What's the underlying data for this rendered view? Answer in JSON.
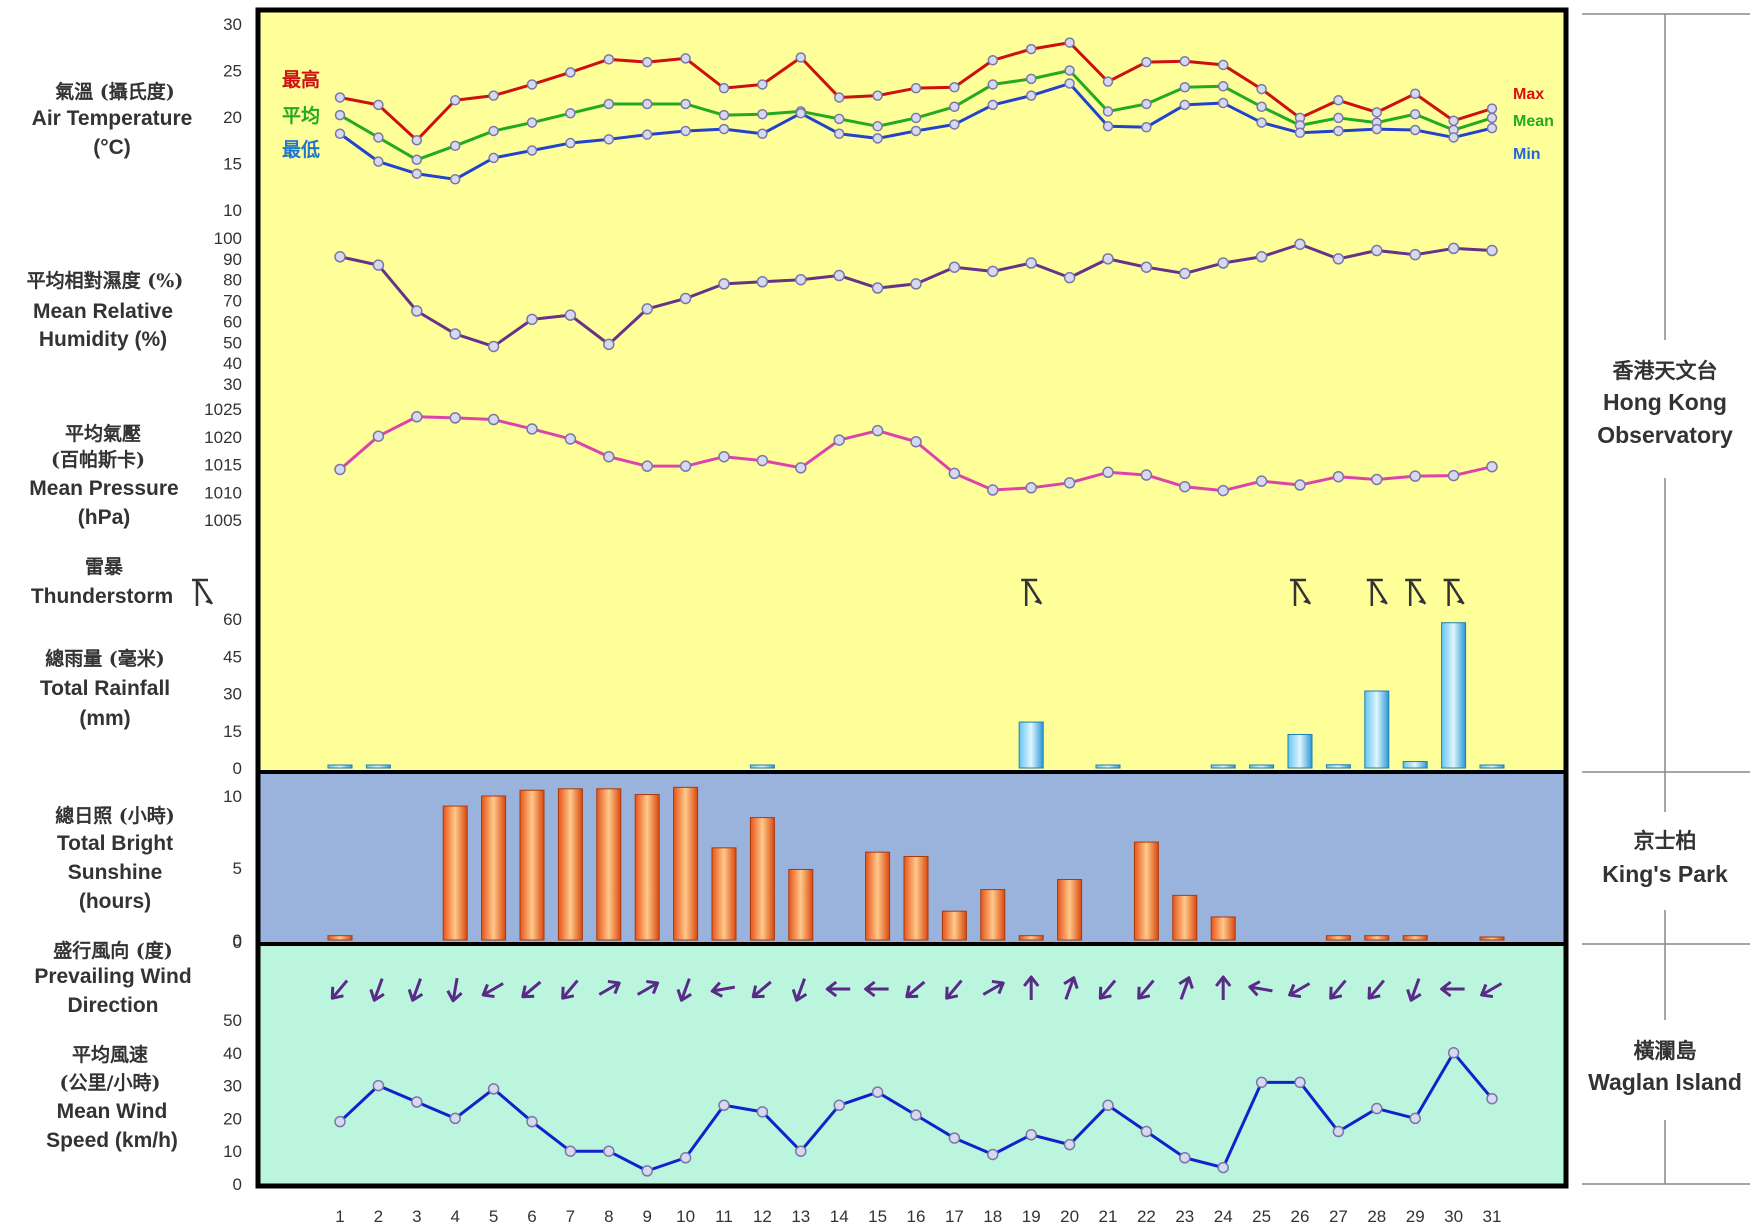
{
  "chart_data": {
    "type": "line",
    "title": "",
    "days": [
      1,
      2,
      3,
      4,
      5,
      6,
      7,
      8,
      9,
      10,
      11,
      12,
      13,
      14,
      15,
      16,
      17,
      18,
      19,
      20,
      21,
      22,
      23,
      24,
      25,
      26,
      27,
      28,
      29,
      30,
      31
    ],
    "temperature": {
      "label_zh": "氣溫 (攝氏度)",
      "label_en": "Air Temperature",
      "unit": "(°C)",
      "ylim": [
        10,
        30
      ],
      "ticks": [
        30,
        25,
        20,
        15,
        10
      ],
      "series": [
        {
          "name": "Max",
          "name_zh": "最高",
          "color": "#cc1111",
          "values": [
            22.1,
            21.3,
            17.5,
            21.8,
            22.3,
            23.5,
            24.8,
            26.2,
            25.9,
            26.3,
            23.1,
            23.5,
            26.4,
            22.1,
            22.3,
            23.1,
            23.2,
            26.1,
            27.3,
            28.0,
            23.8,
            25.9,
            26.0,
            25.6,
            23.0,
            19.9,
            21.8,
            20.5,
            22.5,
            19.6,
            20.9
          ]
        },
        {
          "name": "Mean",
          "name_zh": "平均",
          "color": "#22aa22",
          "values": [
            20.2,
            17.8,
            15.4,
            16.9,
            18.5,
            19.4,
            20.4,
            21.4,
            21.4,
            21.4,
            20.2,
            20.3,
            20.6,
            19.8,
            19.0,
            19.9,
            21.1,
            23.5,
            24.1,
            25.0,
            20.6,
            21.4,
            23.2,
            23.3,
            21.1,
            19.1,
            19.9,
            19.4,
            20.3,
            18.6,
            19.9
          ]
        },
        {
          "name": "Min",
          "name_zh": "最低",
          "color": "#2244cc",
          "values": [
            18.2,
            15.2,
            13.9,
            13.3,
            15.6,
            16.4,
            17.2,
            17.6,
            18.1,
            18.5,
            18.7,
            18.2,
            20.4,
            18.2,
            17.7,
            18.5,
            19.2,
            21.3,
            22.3,
            23.6,
            19.0,
            18.9,
            21.3,
            21.5,
            19.4,
            18.3,
            18.5,
            18.7,
            18.6,
            17.8,
            18.8
          ]
        }
      ]
    },
    "humidity": {
      "label_zh": "平均相對濕度 (%)",
      "label_en_1": "Mean Relative",
      "label_en_2": "Humidity (%)",
      "ylim": [
        30,
        100
      ],
      "ticks": [
        100,
        90,
        80,
        70,
        60,
        50,
        40,
        30
      ],
      "color": "#663388",
      "values": [
        91,
        87,
        65,
        54,
        48,
        61,
        63,
        49,
        66,
        71,
        78,
        79,
        80,
        82,
        76,
        78,
        86,
        84,
        88,
        81,
        90,
        86,
        83,
        88,
        91,
        97,
        90,
        94,
        92,
        95,
        94
      ]
    },
    "pressure": {
      "label_zh_1": "平均氣壓",
      "label_zh_2": "(百帕斯卡)",
      "label_en_1": "Mean Pressure",
      "label_en_2": "(hPa)",
      "ylim": [
        1005,
        1025
      ],
      "ticks": [
        1025,
        1020,
        1015,
        1010,
        1005
      ],
      "color": "#dd44aa",
      "values": [
        1014.1,
        1020.1,
        1023.6,
        1023.4,
        1023.1,
        1021.4,
        1019.6,
        1016.4,
        1014.7,
        1014.7,
        1016.4,
        1015.7,
        1014.4,
        1019.4,
        1021.1,
        1019.1,
        1013.4,
        1010.4,
        1010.8,
        1011.7,
        1013.6,
        1013.1,
        1011.0,
        1010.3,
        1012.0,
        1011.3,
        1012.8,
        1012.3,
        1012.9,
        1013.0,
        1014.6
      ]
    },
    "thunderstorm": {
      "label_zh": "雷暴",
      "label_en": "Thunderstorm",
      "days": [
        19,
        26,
        28,
        29,
        30
      ]
    },
    "rainfall": {
      "label_zh": "總雨量 (毫米)",
      "label_en": "Total Rainfall",
      "unit": "(mm)",
      "ylim": [
        0,
        60
      ],
      "ticks": [
        60,
        45,
        30,
        15,
        0
      ],
      "color": "#33aadd",
      "values": [
        0.1,
        0.7,
        0,
        0,
        0,
        0,
        0,
        0,
        0,
        0,
        0,
        0.1,
        0,
        0,
        0,
        0,
        0,
        0,
        18.5,
        0,
        0.8,
        0,
        0,
        1.0,
        1.0,
        13.5,
        1.3,
        31.0,
        2.6,
        58.5,
        0.8
      ]
    },
    "sunshine": {
      "label_zh": "總日照 (小時)",
      "label_en_1": "Total Bright",
      "label_en_2": "Sunshine",
      "label_en_3": "(hours)",
      "ylim": [
        0,
        10
      ],
      "ticks": [
        10,
        5,
        0
      ],
      "color": "#ee6622",
      "values": [
        0.3,
        0,
        0,
        9.3,
        10.0,
        10.4,
        10.5,
        10.5,
        10.1,
        10.6,
        6.4,
        8.5,
        4.9,
        0,
        6.1,
        5.8,
        2.0,
        3.5,
        0.3,
        4.2,
        0,
        6.8,
        3.1,
        1.6,
        0,
        0,
        0.3,
        0.3,
        0.3,
        0,
        0.1
      ]
    },
    "wind_direction": {
      "label_zh": "盛行風向 (度)",
      "label_en_1": "Prevailing Wind",
      "label_en_2": "Direction",
      "tick": "0",
      "degrees": [
        40,
        20,
        20,
        10,
        60,
        50,
        40,
        240,
        240,
        20,
        80,
        50,
        20,
        90,
        90,
        50,
        40,
        240,
        180,
        200,
        40,
        40,
        200,
        180,
        100,
        60,
        40,
        40,
        20,
        90,
        60
      ]
    },
    "wind_speed": {
      "label_zh_1": "平均風速",
      "label_zh_2": "(公里/小時)",
      "label_en_1": "Mean Wind",
      "label_en_2": "Speed (km/h)",
      "ylim": [
        0,
        50
      ],
      "ticks": [
        50,
        40,
        30,
        20,
        10,
        0
      ],
      "color": "#1122cc",
      "values": [
        19,
        30,
        25,
        20,
        29,
        19,
        10,
        10,
        4,
        8,
        24,
        22,
        10,
        24,
        28,
        21,
        14,
        9,
        15,
        12,
        24,
        16,
        8,
        5,
        31,
        31,
        16,
        23,
        20,
        40,
        26
      ]
    },
    "x_ticks": [
      "1",
      "2",
      "3",
      "4",
      "5",
      "6",
      "7",
      "8",
      "9",
      "10",
      "11",
      "12",
      "13",
      "14",
      "15",
      "16",
      "17",
      "18",
      "19",
      "20",
      "21",
      "22",
      "23",
      "24",
      "25",
      "26",
      "27",
      "28",
      "29",
      "30",
      "31"
    ]
  },
  "stations": [
    {
      "zh": "香港天文台",
      "en_1": "Hong Kong",
      "en_2": "Observatory"
    },
    {
      "zh": "京士柏",
      "en_1": "King's Park"
    },
    {
      "zh": "橫瀾島",
      "en_1": "Waglan Island"
    }
  ],
  "colors": {
    "yellow_panel": "#ffff99",
    "blue_panel": "#99b3dd",
    "green_panel": "#bbf5dd"
  }
}
